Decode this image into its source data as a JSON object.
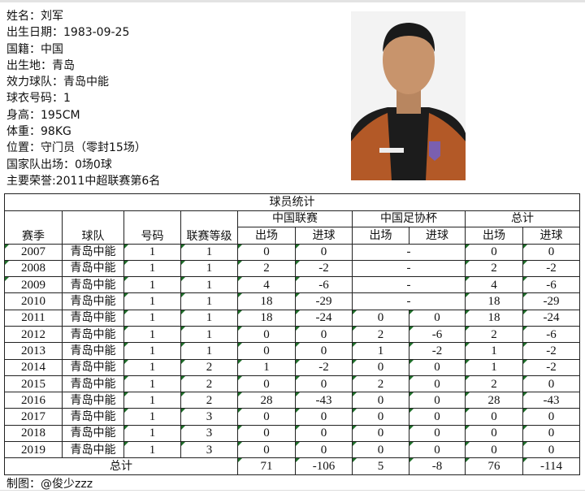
{
  "profile": {
    "lines": [
      "姓名：刘军",
      "出生日期：1983-09-25",
      "国籍：中国",
      "出生地：青岛",
      "效力球队：青岛中能",
      "球衣号码：1",
      "身高：195CM",
      "体重：98KG",
      "位置：守门员（零封15场）",
      "国家队出场：0场0球",
      "主要荣誉:2011中超联赛第6名"
    ],
    "photo_alt": "player-photo"
  },
  "table": {
    "title": "球员统计",
    "headers": {
      "season": "赛季",
      "team": "球队",
      "number": "号码",
      "level": "联赛等级",
      "league": "中国联赛",
      "cup": "中国足协杯",
      "total": "总计",
      "apps": "出场",
      "goals": "进球"
    },
    "rows": [
      [
        "2007",
        "青岛中能",
        "1",
        "1",
        "0",
        "0",
        "-",
        null,
        "0",
        "0"
      ],
      [
        "2008",
        "青岛中能",
        "1",
        "1",
        "2",
        "-2",
        "-",
        null,
        "2",
        "-2"
      ],
      [
        "2009",
        "青岛中能",
        "1",
        "1",
        "4",
        "-6",
        "-",
        null,
        "4",
        "-6"
      ],
      [
        "2010",
        "青岛中能",
        "1",
        "1",
        "18",
        "-29",
        "-",
        null,
        "18",
        "-29"
      ],
      [
        "2011",
        "青岛中能",
        "1",
        "1",
        "18",
        "-24",
        "0",
        "0",
        "18",
        "-24"
      ],
      [
        "2012",
        "青岛中能",
        "1",
        "1",
        "0",
        "0",
        "2",
        "-6",
        "2",
        "-6"
      ],
      [
        "2013",
        "青岛中能",
        "1",
        "1",
        "0",
        "0",
        "1",
        "-2",
        "1",
        "-2"
      ],
      [
        "2014",
        "青岛中能",
        "1",
        "2",
        "1",
        "-2",
        "0",
        "0",
        "1",
        "-2"
      ],
      [
        "2015",
        "青岛中能",
        "1",
        "2",
        "0",
        "0",
        "2",
        "0",
        "2",
        "0"
      ],
      [
        "2016",
        "青岛中能",
        "1",
        "2",
        "28",
        "-43",
        "0",
        "0",
        "28",
        "-43"
      ],
      [
        "2017",
        "青岛中能",
        "1",
        "3",
        "0",
        "0",
        "0",
        "0",
        "0",
        "0"
      ],
      [
        "2018",
        "青岛中能",
        "1",
        "3",
        "0",
        "0",
        "0",
        "0",
        "0",
        "0"
      ],
      [
        "2019",
        "青岛中能",
        "1",
        "3",
        "0",
        "0",
        "0",
        "0",
        "0",
        "0"
      ]
    ],
    "total_row": {
      "label": "总计",
      "values": [
        "71",
        "-106",
        "5",
        "-8",
        "76",
        "-114"
      ]
    }
  },
  "credit": "制图：@俊少zzz",
  "colors": {
    "border": "#222222",
    "cell_marker": "#1f6e2a"
  }
}
